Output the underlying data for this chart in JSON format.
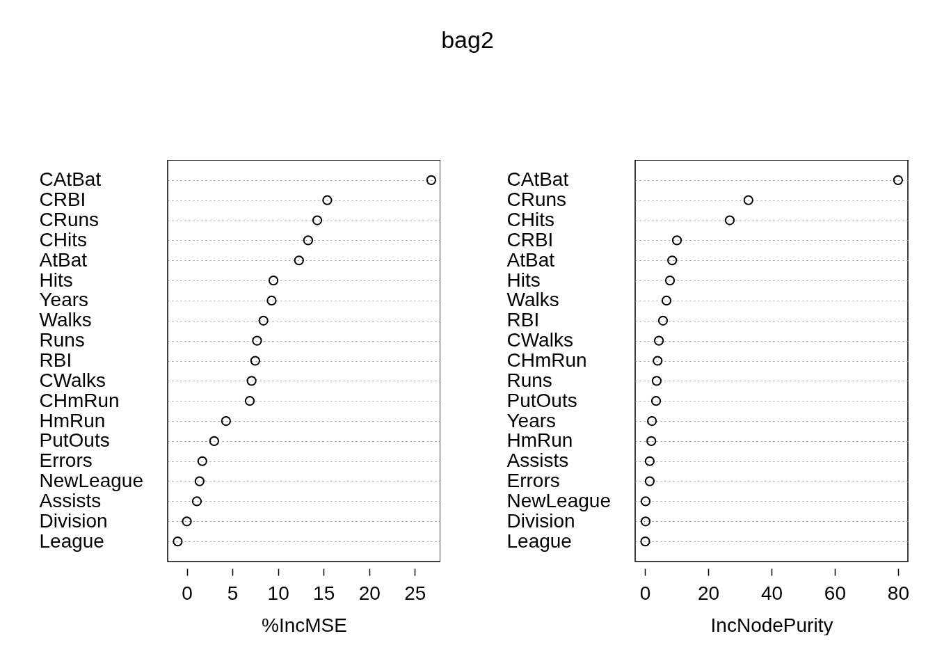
{
  "chart_data": [
    {
      "type": "scatter",
      "orientation": "horizontal",
      "title": "bag2",
      "xlabel": "%IncMSE",
      "grid": "y",
      "marker": "circle",
      "categories": [
        "CAtBat",
        "CRBI",
        "CRuns",
        "CHits",
        "AtBat",
        "Hits",
        "Years",
        "Walks",
        "Runs",
        "RBI",
        "CWalks",
        "CHmRun",
        "HmRun",
        "PutOuts",
        "Errors",
        "NewLeague",
        "Assists",
        "Division",
        "League"
      ],
      "series": [
        {
          "color": "#000000",
          "values": [
            26.8,
            15.4,
            14.3,
            13.3,
            12.3,
            9.5,
            9.3,
            8.4,
            7.7,
            7.5,
            7.1,
            6.9,
            4.3,
            3.0,
            1.7,
            1.4,
            1.1,
            0.0,
            -1.0
          ]
        }
      ],
      "xlim": [
        -2.1,
        27.8
      ],
      "xticks": [
        0,
        5,
        10,
        15,
        20,
        25
      ]
    },
    {
      "type": "scatter",
      "orientation": "horizontal",
      "xlabel": "IncNodePurity",
      "grid": "y",
      "marker": "circle",
      "categories": [
        "CAtBat",
        "CRuns",
        "CHits",
        "CRBI",
        "AtBat",
        "Hits",
        "Walks",
        "RBI",
        "CWalks",
        "CHmRun",
        "Runs",
        "PutOuts",
        "Years",
        "HmRun",
        "Assists",
        "Errors",
        "NewLeague",
        "Division",
        "League"
      ],
      "series": [
        {
          "color": "#000000",
          "values": [
            80.0,
            32.7,
            26.8,
            10.1,
            8.6,
            7.9,
            6.8,
            5.7,
            4.4,
            4.0,
            3.7,
            3.5,
            2.2,
            2.0,
            1.5,
            1.5,
            0.2,
            0.2,
            0.1
          ]
        }
      ],
      "xlim": [
        -3.1,
        83.1
      ],
      "xticks": [
        0,
        20,
        40,
        60,
        80
      ]
    }
  ]
}
